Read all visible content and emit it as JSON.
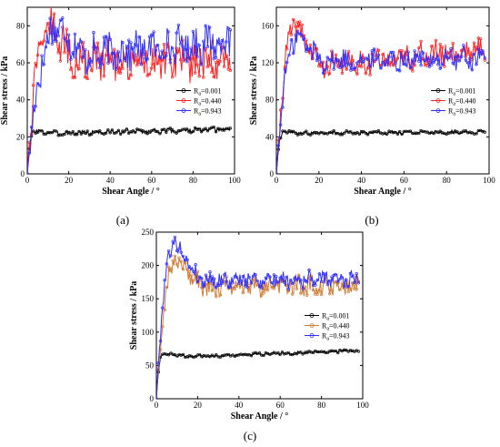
{
  "figure": {
    "legend_position": "right-middle",
    "grid": false
  },
  "chart_data": [
    {
      "panel": "(a)",
      "type": "scatter",
      "xlabel": "Shear Angle / °",
      "ylabel": "Shear stress / kPa",
      "xlim": [
        0,
        100
      ],
      "ylim": [
        0,
        90
      ],
      "xticks": [
        0,
        20,
        40,
        60,
        80,
        100
      ],
      "yticks": [
        0,
        20,
        40,
        60,
        80
      ],
      "legend": [
        "R_a=0.001",
        "R_a=0.440",
        "R_a=0.943"
      ],
      "series": [
        {
          "name": "R_a=0.001",
          "color": "#000000",
          "peak": [
            3,
            23
          ],
          "level": 22,
          "end": 24,
          "noise": 1.2
        },
        {
          "name": "R_a=0.440",
          "color": "#ff2020",
          "peak": [
            10,
            82
          ],
          "level": 62,
          "end": 60,
          "noise": 9
        },
        {
          "name": "R_a=0.943",
          "color": "#2f2fff",
          "peak": [
            15,
            80
          ],
          "level": 64,
          "end": 72,
          "noise": 9
        }
      ]
    },
    {
      "panel": "(b)",
      "type": "scatter",
      "xlabel": "Shear Angle / °",
      "ylabel": "Shear stress / kPa",
      "xlim": [
        0,
        100
      ],
      "ylim": [
        0,
        180
      ],
      "xticks": [
        0,
        20,
        40,
        60,
        80,
        100
      ],
      "yticks": [
        0,
        40,
        80,
        120,
        160
      ],
      "legend": [
        "R_a=0.001",
        "R_a=0.440",
        "R_a=0.943"
      ],
      "series": [
        {
          "name": "R_a=0.001",
          "color": "#000000",
          "peak": [
            3,
            45
          ],
          "level": 44,
          "end": 45,
          "noise": 1.8
        },
        {
          "name": "R_a=0.440",
          "color": "#ff2020",
          "peak": [
            9,
            160
          ],
          "level": 116,
          "end": 135,
          "noise": 12
        },
        {
          "name": "R_a=0.943",
          "color": "#2f2fff",
          "peak": [
            10,
            148
          ],
          "level": 122,
          "end": 125,
          "noise": 11
        }
      ]
    },
    {
      "panel": "(c)",
      "type": "scatter",
      "xlabel": "Shear Angle / °",
      "ylabel": "Shear stress / kPa",
      "xlim": [
        0,
        100
      ],
      "ylim": [
        0,
        250
      ],
      "xticks": [
        0,
        20,
        40,
        60,
        80,
        100
      ],
      "yticks": [
        0,
        50,
        100,
        150,
        200,
        250
      ],
      "legend": [
        "R_a=0.001",
        "R_a=0.440",
        "R_a=0.943"
      ],
      "series": [
        {
          "name": "R_a=0.001",
          "color": "#000000",
          "peak": [
            3,
            68
          ],
          "level": 63,
          "end": 72,
          "noise": 2
        },
        {
          "name": "R_a=0.440",
          "color": "#d07a30",
          "peak": [
            10,
            210
          ],
          "level": 168,
          "end": 170,
          "noise": 13
        },
        {
          "name": "R_a=0.943",
          "color": "#2f2fff",
          "peak": [
            9,
            235
          ],
          "level": 178,
          "end": 180,
          "noise": 11
        }
      ]
    }
  ]
}
